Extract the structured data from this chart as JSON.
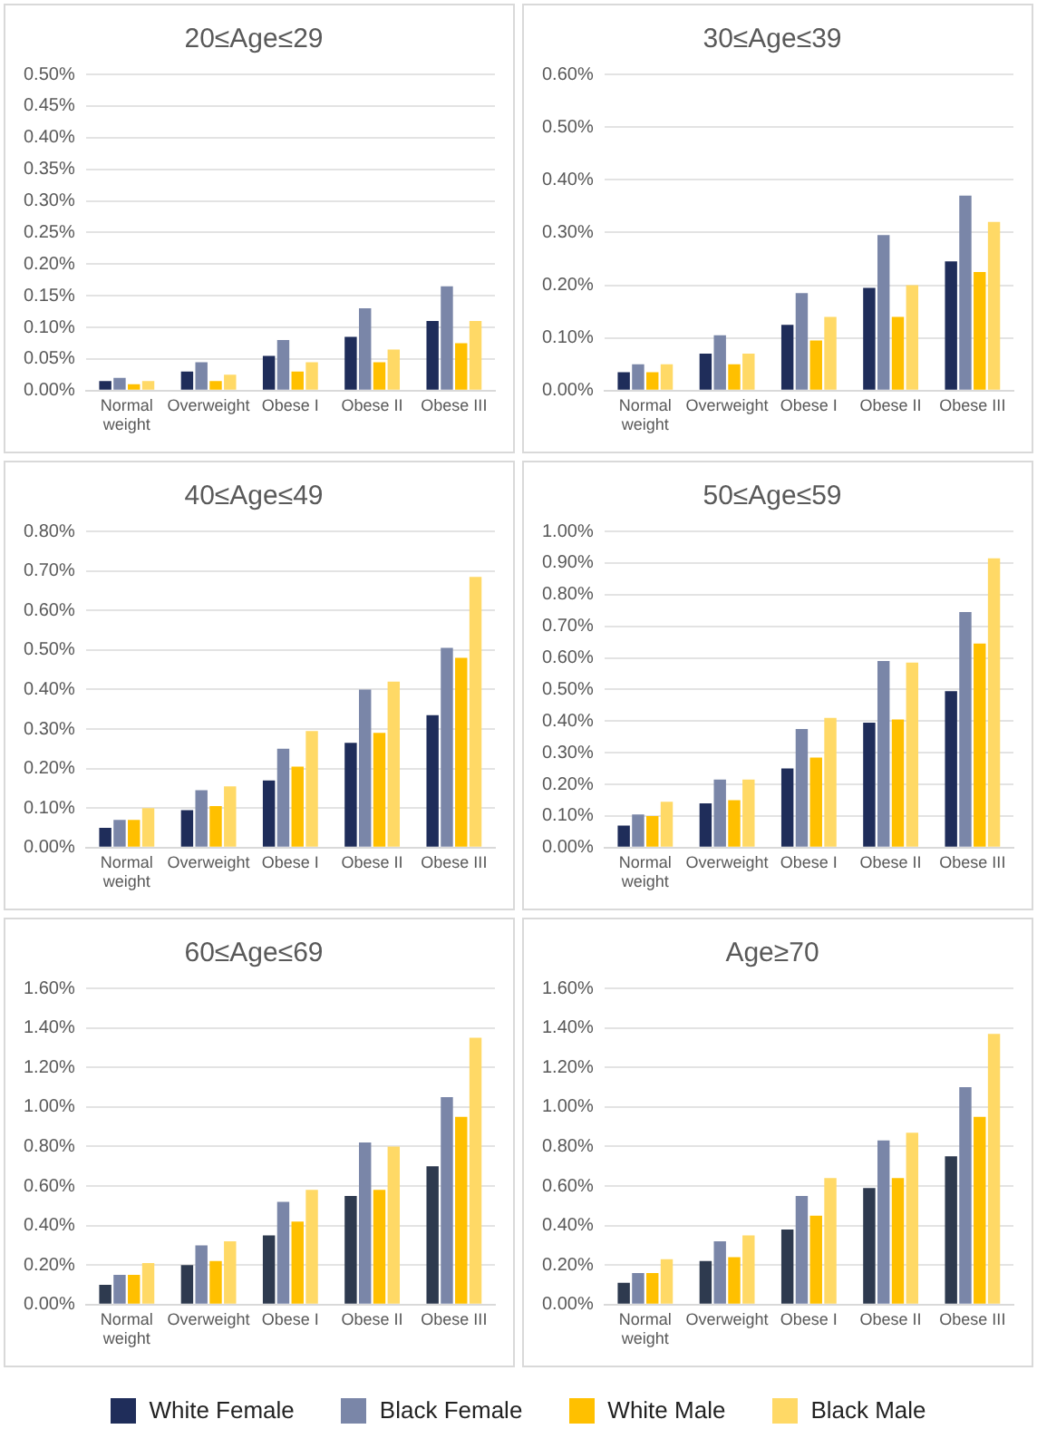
{
  "chart_data": [
    {
      "type": "bar",
      "title": "20≤Age≤29",
      "categories": [
        "Normal weight",
        "Overweight",
        "Obese I",
        "Obese II",
        "Obese III"
      ],
      "ylim": [
        0,
        0.5
      ],
      "yticks": [
        {
          "value": 0,
          "label": "0.00%"
        },
        {
          "value": 0.05,
          "label": "0.05%"
        },
        {
          "value": 0.1,
          "label": "0.10%"
        },
        {
          "value": 0.15,
          "label": "0.15%"
        },
        {
          "value": 0.2,
          "label": "0.20%"
        },
        {
          "value": 0.25,
          "label": "0.25%"
        },
        {
          "value": 0.3,
          "label": "0.30%"
        },
        {
          "value": 0.35,
          "label": "0.35%"
        },
        {
          "value": 0.4,
          "label": "0.40%"
        },
        {
          "value": 0.45,
          "label": "0.45%"
        },
        {
          "value": 0.5,
          "label": "0.50%"
        }
      ],
      "grid": "y",
      "legend": "bottom",
      "series": [
        {
          "name": "White Female",
          "color": "#1f2d5a",
          "values": [
            0.015,
            0.03,
            0.055,
            0.085,
            0.11
          ]
        },
        {
          "name": "Black Female",
          "color": "#7a86a8",
          "values": [
            0.02,
            0.045,
            0.08,
            0.13,
            0.165
          ]
        },
        {
          "name": "White Male",
          "color": "#ffc000",
          "values": [
            0.01,
            0.015,
            0.03,
            0.045,
            0.075
          ]
        },
        {
          "name": "Black Male",
          "color": "#ffd966",
          "values": [
            0.015,
            0.025,
            0.045,
            0.065,
            0.11
          ]
        }
      ]
    },
    {
      "type": "bar",
      "title": "30≤Age≤39",
      "categories": [
        "Normal weight",
        "Overweight",
        "Obese I",
        "Obese II",
        "Obese III"
      ],
      "ylim": [
        0,
        0.6
      ],
      "yticks": [
        {
          "value": 0,
          "label": "0.00%"
        },
        {
          "value": 0.1,
          "label": "0.10%"
        },
        {
          "value": 0.2,
          "label": "0.20%"
        },
        {
          "value": 0.3,
          "label": "0.30%"
        },
        {
          "value": 0.4,
          "label": "0.40%"
        },
        {
          "value": 0.5,
          "label": "0.50%"
        },
        {
          "value": 0.6,
          "label": "0.60%"
        }
      ],
      "grid": "y",
      "legend": "bottom",
      "series": [
        {
          "name": "White Female",
          "color": "#1f2d5a",
          "values": [
            0.035,
            0.07,
            0.125,
            0.195,
            0.245
          ]
        },
        {
          "name": "Black Female",
          "color": "#7a86a8",
          "values": [
            0.05,
            0.105,
            0.185,
            0.295,
            0.37
          ]
        },
        {
          "name": "White Male",
          "color": "#ffc000",
          "values": [
            0.035,
            0.05,
            0.095,
            0.14,
            0.225
          ]
        },
        {
          "name": "Black Male",
          "color": "#ffd966",
          "values": [
            0.05,
            0.07,
            0.14,
            0.2,
            0.32
          ]
        }
      ]
    },
    {
      "type": "bar",
      "title": "40≤Age≤49",
      "categories": [
        "Normal weight",
        "Overweight",
        "Obese I",
        "Obese II",
        "Obese III"
      ],
      "ylim": [
        0,
        0.8
      ],
      "yticks": [
        {
          "value": 0,
          "label": "0.00%"
        },
        {
          "value": 0.1,
          "label": "0.10%"
        },
        {
          "value": 0.2,
          "label": "0.20%"
        },
        {
          "value": 0.3,
          "label": "0.30%"
        },
        {
          "value": 0.4,
          "label": "0.40%"
        },
        {
          "value": 0.5,
          "label": "0.50%"
        },
        {
          "value": 0.6,
          "label": "0.60%"
        },
        {
          "value": 0.7,
          "label": "0.70%"
        },
        {
          "value": 0.8,
          "label": "0.80%"
        }
      ],
      "grid": "y",
      "legend": "bottom",
      "series": [
        {
          "name": "White Female",
          "color": "#1f2d5a",
          "values": [
            0.05,
            0.095,
            0.17,
            0.265,
            0.335
          ]
        },
        {
          "name": "Black Female",
          "color": "#7a86a8",
          "values": [
            0.07,
            0.145,
            0.25,
            0.4,
            0.505
          ]
        },
        {
          "name": "White Male",
          "color": "#ffc000",
          "values": [
            0.07,
            0.105,
            0.205,
            0.29,
            0.48
          ]
        },
        {
          "name": "Black Male",
          "color": "#ffd966",
          "values": [
            0.1,
            0.155,
            0.295,
            0.42,
            0.685
          ]
        }
      ]
    },
    {
      "type": "bar",
      "title": "50≤Age≤59",
      "categories": [
        "Normal weight",
        "Overweight",
        "Obese I",
        "Obese II",
        "Obese III"
      ],
      "ylim": [
        0,
        1.0
      ],
      "yticks": [
        {
          "value": 0,
          "label": "0.00%"
        },
        {
          "value": 0.1,
          "label": "0.10%"
        },
        {
          "value": 0.2,
          "label": "0.20%"
        },
        {
          "value": 0.3,
          "label": "0.30%"
        },
        {
          "value": 0.4,
          "label": "0.40%"
        },
        {
          "value": 0.5,
          "label": "0.50%"
        },
        {
          "value": 0.6,
          "label": "0.60%"
        },
        {
          "value": 0.7,
          "label": "0.70%"
        },
        {
          "value": 0.8,
          "label": "0.80%"
        },
        {
          "value": 0.9,
          "label": "0.90%"
        },
        {
          "value": 1.0,
          "label": "1.00%"
        }
      ],
      "grid": "y",
      "legend": "bottom",
      "series": [
        {
          "name": "White Female",
          "color": "#1f2d5a",
          "values": [
            0.07,
            0.14,
            0.25,
            0.395,
            0.495
          ]
        },
        {
          "name": "Black Female",
          "color": "#7a86a8",
          "values": [
            0.105,
            0.215,
            0.375,
            0.59,
            0.745
          ]
        },
        {
          "name": "White Male",
          "color": "#ffc000",
          "values": [
            0.1,
            0.15,
            0.285,
            0.405,
            0.645
          ]
        },
        {
          "name": "Black Male",
          "color": "#ffd966",
          "values": [
            0.145,
            0.215,
            0.41,
            0.585,
            0.915
          ]
        }
      ]
    },
    {
      "type": "bar",
      "title": "60≤Age≤69",
      "categories": [
        "Normal weight",
        "Overweight",
        "Obese I",
        "Obese II",
        "Obese III"
      ],
      "ylim": [
        0,
        1.6
      ],
      "yticks": [
        {
          "value": 0,
          "label": "0.00%"
        },
        {
          "value": 0.2,
          "label": "0.20%"
        },
        {
          "value": 0.4,
          "label": "0.40%"
        },
        {
          "value": 0.6,
          "label": "0.60%"
        },
        {
          "value": 0.8,
          "label": "0.80%"
        },
        {
          "value": 1.0,
          "label": "1.00%"
        },
        {
          "value": 1.2,
          "label": "1.20%"
        },
        {
          "value": 1.4,
          "label": "1.40%"
        },
        {
          "value": 1.6,
          "label": "1.60%"
        }
      ],
      "grid": "y",
      "legend": "bottom",
      "series": [
        {
          "name": "White Female",
          "color": "#2e3a4f",
          "values": [
            0.1,
            0.2,
            0.35,
            0.55,
            0.7
          ]
        },
        {
          "name": "Black Female",
          "color": "#7a86a8",
          "values": [
            0.15,
            0.3,
            0.52,
            0.82,
            1.05
          ]
        },
        {
          "name": "White Male",
          "color": "#ffc000",
          "values": [
            0.15,
            0.22,
            0.42,
            0.58,
            0.95
          ]
        },
        {
          "name": "Black Male",
          "color": "#ffd966",
          "values": [
            0.21,
            0.32,
            0.58,
            0.8,
            1.35
          ]
        }
      ]
    },
    {
      "type": "bar",
      "title": "Age≥70",
      "categories": [
        "Normal weight",
        "Overweight",
        "Obese I",
        "Obese II",
        "Obese III"
      ],
      "ylim": [
        0,
        1.6
      ],
      "yticks": [
        {
          "value": 0,
          "label": "0.00%"
        },
        {
          "value": 0.2,
          "label": "0.20%"
        },
        {
          "value": 0.4,
          "label": "0.40%"
        },
        {
          "value": 0.6,
          "label": "0.60%"
        },
        {
          "value": 0.8,
          "label": "0.80%"
        },
        {
          "value": 1.0,
          "label": "1.00%"
        },
        {
          "value": 1.2,
          "label": "1.20%"
        },
        {
          "value": 1.4,
          "label": "1.40%"
        },
        {
          "value": 1.6,
          "label": "1.60%"
        }
      ],
      "grid": "y",
      "legend": "bottom",
      "series": [
        {
          "name": "White Female",
          "color": "#2e3a4f",
          "values": [
            0.11,
            0.22,
            0.38,
            0.59,
            0.75
          ]
        },
        {
          "name": "Black Female",
          "color": "#7a86a8",
          "values": [
            0.16,
            0.32,
            0.55,
            0.83,
            1.1
          ]
        },
        {
          "name": "White Male",
          "color": "#ffc000",
          "values": [
            0.16,
            0.24,
            0.45,
            0.64,
            0.95
          ]
        },
        {
          "name": "Black Male",
          "color": "#ffd966",
          "values": [
            0.23,
            0.35,
            0.64,
            0.87,
            1.37
          ]
        }
      ]
    }
  ]
}
